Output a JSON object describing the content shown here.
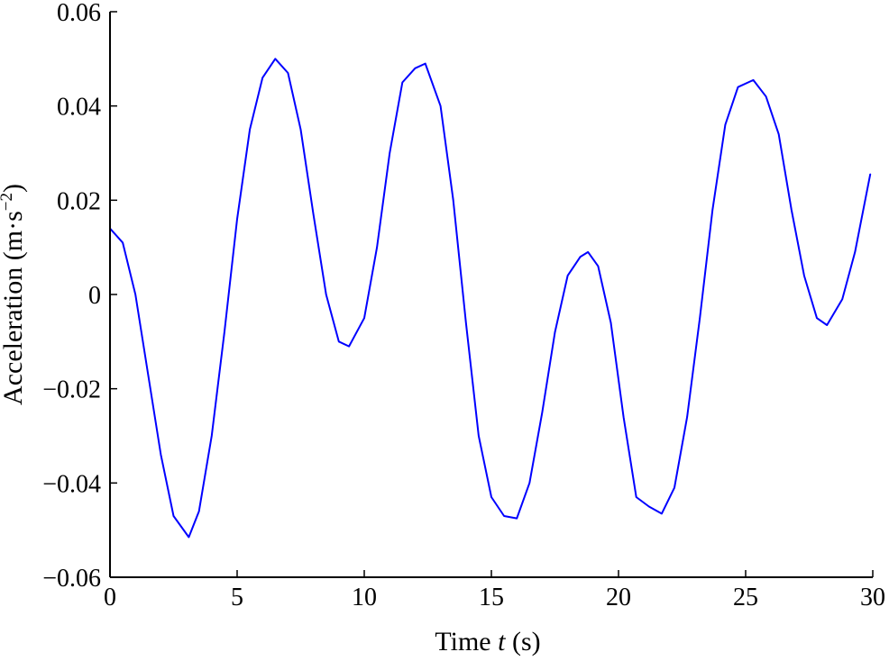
{
  "chart_data": {
    "type": "line",
    "title": "",
    "xlabel": {
      "prefix": "Time ",
      "italic": "t",
      "suffix": " (s)"
    },
    "ylabel": {
      "main": "Acceleration (m·s",
      "sup": "−2",
      "close": ")"
    },
    "xlim": [
      0,
      30
    ],
    "ylim": [
      -0.06,
      0.06
    ],
    "xticks": [
      0,
      5,
      10,
      15,
      20,
      25,
      30
    ],
    "xtick_labels": [
      "0",
      "5",
      "10",
      "15",
      "20",
      "25",
      "30"
    ],
    "yticks": [
      -0.06,
      -0.04,
      -0.02,
      0,
      0.02,
      0.04,
      0.06
    ],
    "ytick_labels": [
      "−0.06",
      "−0.04",
      "−0.02",
      "0",
      "0.02",
      "0.04",
      "0.06"
    ],
    "grid": false,
    "legend": "none",
    "series": [
      {
        "color": "#0000ff",
        "x": [
          0,
          0.5,
          1,
          1.5,
          2,
          2.5,
          3.1,
          3.5,
          4,
          4.5,
          5,
          5.5,
          6,
          6.5,
          7,
          7.5,
          8,
          8.5,
          9,
          9.4,
          10,
          10.5,
          11,
          11.5,
          12,
          12.4,
          13,
          13.5,
          14,
          14.5,
          15,
          15.5,
          16,
          16.5,
          17,
          17.5,
          18,
          18.5,
          18.8,
          19.2,
          19.7,
          20.2,
          20.7,
          21.2,
          21.7,
          22.2,
          22.7,
          23.2,
          23.7,
          24.2,
          24.7,
          25.3,
          25.8,
          26.3,
          26.8,
          27.3,
          27.8,
          28.2,
          28.8,
          29.3,
          29.9
        ],
        "y": [
          0.014,
          0.011,
          0.0,
          -0.017,
          -0.034,
          -0.047,
          -0.0515,
          -0.046,
          -0.03,
          -0.008,
          0.016,
          0.035,
          0.046,
          0.05,
          0.047,
          0.035,
          0.017,
          0.0,
          -0.01,
          -0.011,
          -0.005,
          0.01,
          0.03,
          0.045,
          0.048,
          0.049,
          0.04,
          0.02,
          -0.006,
          -0.03,
          -0.043,
          -0.047,
          -0.0475,
          -0.04,
          -0.025,
          -0.008,
          0.004,
          0.008,
          0.009,
          0.006,
          -0.006,
          -0.026,
          -0.043,
          -0.045,
          -0.0465,
          -0.041,
          -0.026,
          -0.005,
          0.018,
          0.036,
          0.044,
          0.0455,
          0.042,
          0.034,
          0.018,
          0.004,
          -0.005,
          -0.0065,
          -0.001,
          0.009,
          0.0255
        ]
      }
    ]
  }
}
